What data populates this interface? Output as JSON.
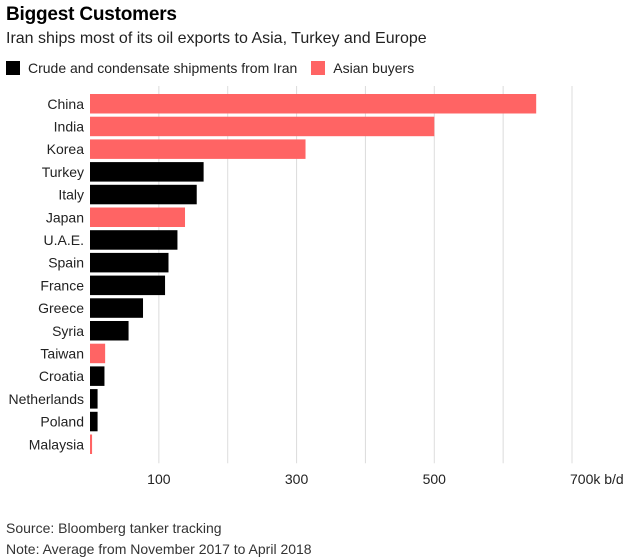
{
  "title": "Biggest Customers",
  "subtitle": "Iran ships most of its oil exports to Asia, Turkey and Europe",
  "legend": [
    {
      "label": "Crude and condensate shipments from Iran",
      "color": "#000000"
    },
    {
      "label": "Asian buyers",
      "color": "#ff6464"
    }
  ],
  "source": "Source: Bloomberg tanker tracking",
  "note": "Note: Average from November 2017 to April 2018",
  "chart_data": {
    "type": "bar",
    "orientation": "horizontal",
    "categories": [
      "China",
      "India",
      "Korea",
      "Turkey",
      "Italy",
      "Japan",
      "U.A.E.",
      "Spain",
      "France",
      "Greece",
      "Syria",
      "Taiwan",
      "Croatia",
      "Netherlands",
      "Poland",
      "Malaysia"
    ],
    "values": [
      648,
      500,
      313,
      165,
      155,
      138,
      127,
      114,
      109,
      77,
      56,
      22,
      21,
      11,
      11,
      3
    ],
    "asian_buyer": [
      true,
      true,
      true,
      false,
      false,
      true,
      false,
      false,
      false,
      false,
      false,
      true,
      false,
      false,
      false,
      true
    ],
    "colors": {
      "default": "#000000",
      "asian": "#ff6464"
    },
    "xlim": [
      0,
      700
    ],
    "xticks": [
      100,
      200,
      300,
      400,
      500,
      600,
      700
    ],
    "xtick_labels": [
      "100",
      "",
      "300",
      "",
      "500",
      "",
      "700k b/d"
    ],
    "grid": true
  }
}
